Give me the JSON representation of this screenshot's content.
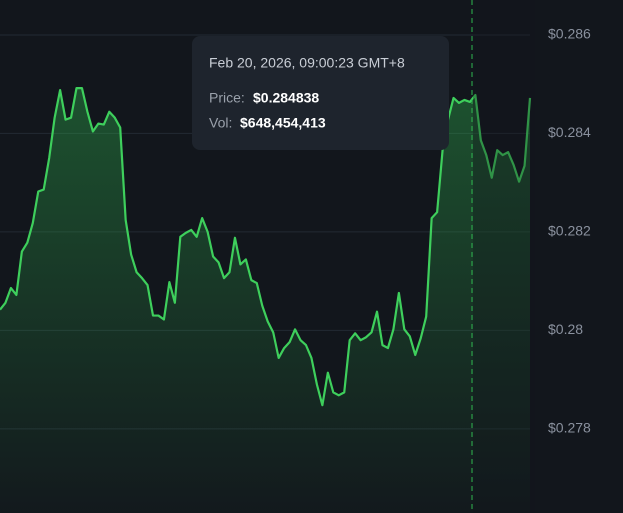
{
  "chart_data": {
    "type": "area",
    "series": [
      {
        "color": "#3ecf5c",
        "values": [
          0.28042,
          0.28056,
          0.28086,
          0.28072,
          0.2816,
          0.28178,
          0.28218,
          0.28282,
          0.28286,
          0.2835,
          0.28432,
          0.28488,
          0.28428,
          0.28432,
          0.28492,
          0.28492,
          0.28444,
          0.28404,
          0.2842,
          0.28418,
          0.28444,
          0.28432,
          0.28412,
          0.28224,
          0.28154,
          0.28118,
          0.28106,
          0.28092,
          0.2803,
          0.2803,
          0.28022,
          0.28098,
          0.28056,
          0.2819,
          0.28198,
          0.28204,
          0.2819,
          0.28228,
          0.282,
          0.2815,
          0.28138,
          0.28106,
          0.28118,
          0.28188,
          0.28134,
          0.28144,
          0.28102,
          0.28096,
          0.2805,
          0.28018,
          0.27996,
          0.27944,
          0.27964,
          0.27976,
          0.28002,
          0.2798,
          0.2797,
          0.27944,
          0.2789,
          0.27848,
          0.27914,
          0.27874,
          0.27868,
          0.27874,
          0.2798,
          0.27994,
          0.2798,
          0.27986,
          0.27996,
          0.28038,
          0.2797,
          0.27964,
          0.28002,
          0.28076,
          0.28002,
          0.27988,
          0.2795,
          0.27984,
          0.28028,
          0.28228,
          0.2824,
          0.28366,
          0.28428,
          0.28472,
          0.28462,
          0.28468,
          0.28464,
          0.28478,
          0.28386,
          0.28356,
          0.2831,
          0.28366,
          0.28356,
          0.28362,
          0.28336,
          0.28302,
          0.28334,
          0.28472
        ]
      }
    ],
    "ylim": [
      0.27629,
      0.28671
    ],
    "yticks": [
      {
        "value": 0.286,
        "label": "$0.286"
      },
      {
        "value": 0.284,
        "label": "$0.284"
      },
      {
        "value": 0.282,
        "label": "$0.282"
      },
      {
        "value": 0.28,
        "label": "$0.28"
      },
      {
        "value": 0.278,
        "label": "$0.278"
      }
    ],
    "grid": true,
    "tooltip": {
      "date": "Feb 20, 2026, 09:00:23 GMT+8",
      "price_label": "Price:",
      "price": {
        "value": 0.284838,
        "label": "$0.284838"
      },
      "vol_label": "Vol:",
      "volume": {
        "value": 648454413,
        "label": "$648,454,413"
      }
    }
  }
}
